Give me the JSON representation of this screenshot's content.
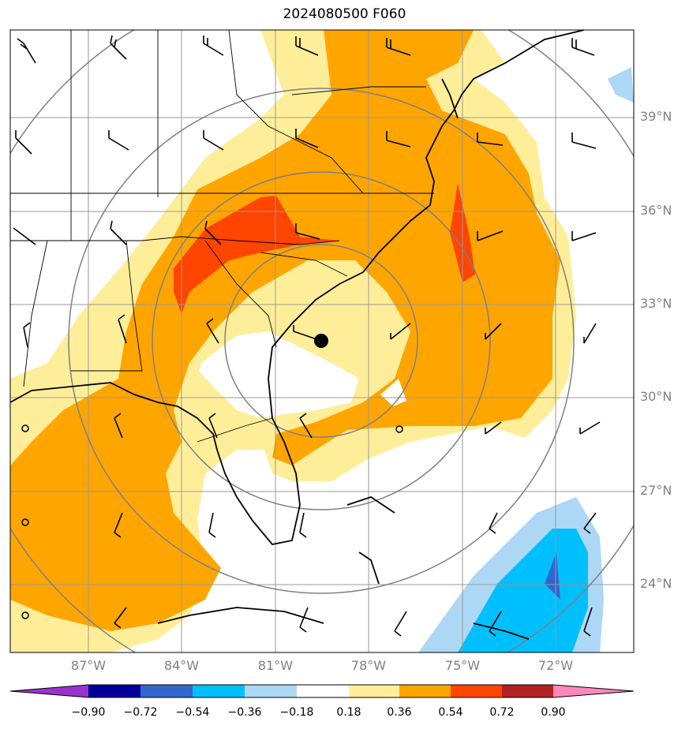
{
  "title": "2024080500 F060",
  "colors": {
    "levels": [
      "#9933cc",
      "#000099",
      "#3366cc",
      "#00bfff",
      "#add8f5",
      "#ffffff",
      "#ffee99",
      "#ffa500",
      "#ff4500",
      "#b22222",
      "#ff88bb"
    ],
    "land_outline": "#000000",
    "grid": "#999999",
    "rings": "#808080"
  },
  "axes": {
    "lat_labels": [
      "39°N",
      "36°N",
      "33°N",
      "30°N",
      "27°N",
      "24°N"
    ],
    "lon_labels": [
      "87°W",
      "84°W",
      "81°W",
      "78°W",
      "75°W",
      "72°W"
    ]
  },
  "colorbar": {
    "ticks": [
      "−0.90",
      "−0.72",
      "−0.54",
      "−0.36",
      "−0.18",
      "0.18",
      "0.36",
      "0.54",
      "0.72",
      "0.90"
    ]
  },
  "center_marker": {
    "lat": 32.0,
    "lon": -79.3
  },
  "map_extent": {
    "lon_min": -89.5,
    "lon_max": -69.5,
    "lat_min": 22.0,
    "lat_max": 41.5
  }
}
